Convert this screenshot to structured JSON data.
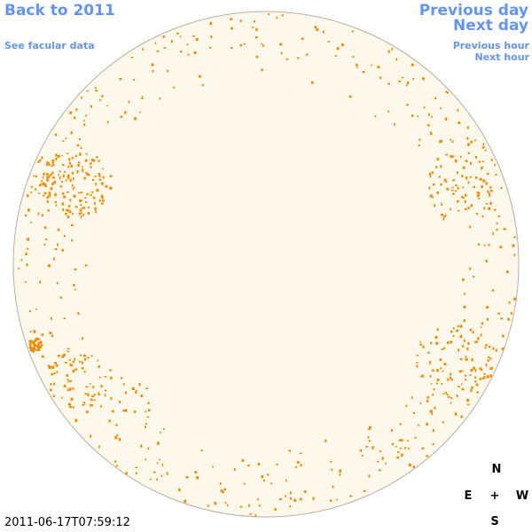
{
  "links": {
    "back": "Back to 2011",
    "facular": "See facular data",
    "previous_day": "Previous day",
    "next_day": "Next day",
    "previous_hour": "Previous hour",
    "next_hour": "Next hour"
  },
  "compass": {
    "north": "N",
    "east": "E",
    "center": "+",
    "west": "W",
    "south": "S"
  },
  "timestamp": "2011-06-17T07:59:12"
}
